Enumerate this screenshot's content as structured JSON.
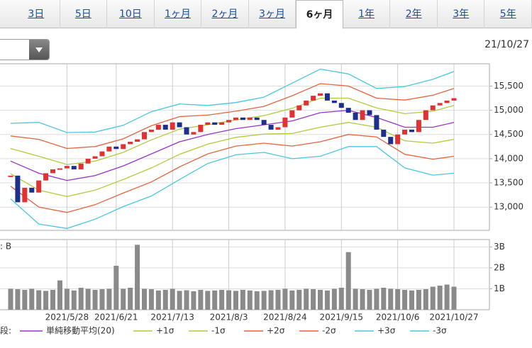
{
  "tabs": [
    "3日",
    "5日",
    "10日",
    "1ヶ月",
    "2ヶ月",
    "3ヶ月",
    "6ヶ月",
    "1年",
    "2年",
    "3年",
    "5年"
  ],
  "selected_tab": 6,
  "date": "21/10/27",
  "chart_data": [
    {
      "type": "candlestick",
      "legend_label": "段:",
      "close": [
        13650,
        13100,
        13400,
        13300,
        13550,
        13700,
        13780,
        13800,
        13850,
        13780,
        13900,
        14000,
        14050,
        14150,
        14250,
        14200,
        14300,
        14350,
        14400,
        14550,
        14600,
        14700,
        14600,
        14750,
        14650,
        14500,
        14550,
        14700,
        14750,
        14700,
        14750,
        14800,
        14850,
        14800,
        14850,
        14800,
        14700,
        14600,
        14650,
        14850,
        15000,
        15100,
        15200,
        15300,
        15350,
        15200,
        15150,
        15050,
        14950,
        14800,
        15000,
        14900,
        14600,
        14450,
        14300,
        14500,
        14600,
        14550,
        14800,
        15000,
        15100,
        15150,
        15200,
        15250
      ],
      "up_color": "#e03232",
      "down_color": "#1c2f8c",
      "ylim": [
        12520,
        15960
      ],
      "yticks": [
        {
          "value": 13000,
          "label": "13,000"
        },
        {
          "value": 13500,
          "label": "13,500"
        },
        {
          "value": 14000,
          "label": "14,000"
        },
        {
          "value": 14500,
          "label": "14,500"
        },
        {
          "value": 15000,
          "label": "15,000"
        },
        {
          "value": 15500,
          "label": "15,500"
        }
      ],
      "grid": true,
      "series": [
        {
          "name": "単純移動平均(20)",
          "color": "#9933cc",
          "x": [
            0,
            4,
            8,
            12,
            16,
            20,
            24,
            28,
            32,
            36,
            40,
            44,
            48,
            52,
            56,
            60,
            63
          ],
          "values": [
            13950,
            13700,
            13550,
            13650,
            13850,
            14100,
            14350,
            14500,
            14620,
            14700,
            14780,
            14950,
            15000,
            14850,
            14650,
            14650,
            14750
          ]
        },
        {
          "name": "+1σ",
          "color": "#b0cc3a",
          "x": [
            0,
            4,
            8,
            12,
            16,
            20,
            24,
            28,
            32,
            36,
            40,
            44,
            48,
            52,
            56,
            60,
            63
          ],
          "values": [
            14210,
            14050,
            13880,
            13950,
            14130,
            14390,
            14610,
            14700,
            14800,
            14890,
            15040,
            15250,
            15250,
            15050,
            14930,
            14980,
            15100
          ]
        },
        {
          "name": "-1σ",
          "color": "#b0cc3a",
          "x": [
            0,
            4,
            8,
            12,
            16,
            20,
            24,
            28,
            32,
            36,
            40,
            44,
            48,
            52,
            56,
            60,
            63
          ],
          "values": [
            13690,
            13350,
            13220,
            13350,
            13570,
            13810,
            14090,
            14300,
            14440,
            14510,
            14520,
            14650,
            14750,
            14650,
            14370,
            14320,
            14400
          ]
        },
        {
          "name": "+2σ",
          "color": "#e8643c",
          "x": [
            0,
            4,
            8,
            12,
            16,
            20,
            24,
            28,
            32,
            36,
            40,
            44,
            48,
            52,
            56,
            60,
            63
          ],
          "values": [
            14470,
            14400,
            14210,
            14250,
            14410,
            14680,
            14870,
            14900,
            14980,
            15080,
            15300,
            15550,
            15500,
            15250,
            15210,
            15310,
            15450
          ]
        },
        {
          "name": "-2σ",
          "color": "#e8643c",
          "x": [
            0,
            4,
            8,
            12,
            16,
            20,
            24,
            28,
            32,
            36,
            40,
            44,
            48,
            52,
            56,
            60,
            63
          ],
          "values": [
            13430,
            13000,
            12890,
            13050,
            13290,
            13520,
            13830,
            14100,
            14260,
            14320,
            14260,
            14350,
            14500,
            14450,
            14090,
            13990,
            14050
          ]
        },
        {
          "name": "+3σ",
          "color": "#48c8e0",
          "x": [
            0,
            4,
            8,
            12,
            16,
            20,
            24,
            28,
            32,
            36,
            40,
            44,
            48,
            52,
            56,
            60,
            63
          ],
          "values": [
            14730,
            14750,
            14540,
            14550,
            14690,
            14970,
            15130,
            15100,
            15160,
            15270,
            15560,
            15850,
            15750,
            15450,
            15490,
            15640,
            15800
          ]
        },
        {
          "name": "-3σ",
          "color": "#48c8e0",
          "x": [
            0,
            4,
            8,
            12,
            16,
            20,
            24,
            28,
            32,
            36,
            40,
            44,
            48,
            52,
            56,
            60,
            63
          ],
          "values": [
            13170,
            12650,
            12560,
            12750,
            13010,
            13230,
            13570,
            13900,
            14080,
            14130,
            14000,
            14050,
            14250,
            14250,
            13810,
            13660,
            13700
          ]
        }
      ]
    },
    {
      "type": "bar",
      "unit_label": ": B",
      "color": "#8a8a8a",
      "categories": [
        null,
        null,
        null,
        null,
        null,
        null,
        null,
        null,
        "2021/5/28",
        null,
        null,
        null,
        null,
        null,
        null,
        "2021/6/21",
        null,
        null,
        null,
        null,
        null,
        null,
        null,
        "2021/7/13",
        null,
        null,
        null,
        null,
        null,
        null,
        null,
        "2021/8/3",
        null,
        null,
        null,
        null,
        null,
        null,
        null,
        "2021/8/24",
        null,
        null,
        null,
        null,
        null,
        null,
        null,
        "2021/9/15",
        null,
        null,
        null,
        null,
        null,
        null,
        null,
        "2021/10/6",
        null,
        null,
        null,
        null,
        null,
        null,
        null,
        "2021/10/27"
      ],
      "values": [
        1.0,
        0.98,
        0.95,
        1.0,
        0.93,
        0.9,
        0.95,
        1.4,
        1.0,
        0.92,
        1.05,
        1.0,
        0.95,
        0.98,
        1.0,
        2.1,
        1.0,
        1.05,
        3.1,
        1.0,
        0.98,
        0.92,
        0.95,
        1.0,
        0.9,
        0.93,
        0.88,
        0.95,
        0.9,
        0.92,
        0.95,
        0.93,
        0.9,
        0.95,
        0.92,
        0.88,
        0.9,
        0.93,
        0.95,
        1.0,
        0.92,
        0.95,
        1.0,
        0.98,
        0.95,
        0.92,
        1.0,
        1.05,
        2.75,
        1.0,
        0.98,
        0.95,
        1.0,
        1.05,
        1.0,
        0.98,
        0.95,
        0.92,
        0.95,
        0.98,
        1.1,
        1.15,
        1.2,
        1.1
      ],
      "ylim": [
        0,
        3.35
      ],
      "yticks": [
        {
          "value": 1,
          "label": "1B"
        },
        {
          "value": 2,
          "label": "2B"
        },
        {
          "value": 3,
          "label": "3B"
        }
      ],
      "grid": true
    }
  ]
}
